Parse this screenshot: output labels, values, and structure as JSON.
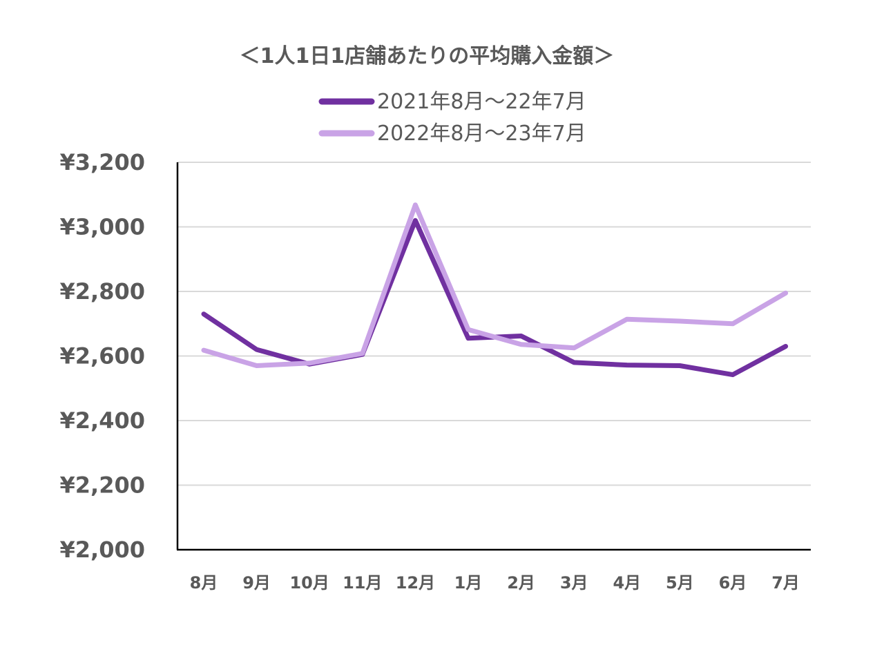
{
  "chart_data": {
    "type": "line",
    "title": "＜1人1日1店舗あたりの平均購入金額＞",
    "categories": [
      "8月",
      "9月",
      "10月",
      "11月",
      "12月",
      "1月",
      "2月",
      "3月",
      "4月",
      "5月",
      "6月",
      "7月"
    ],
    "series": [
      {
        "name": "2021年8月〜22年7月",
        "color": "#7030a0",
        "values": [
          2730,
          2620,
          2575,
          2605,
          3020,
          2655,
          2662,
          2580,
          2572,
          2570,
          2542,
          2630
        ]
      },
      {
        "name": "2022年8月〜23年7月",
        "color": "#c9a3e6",
        "values": [
          2618,
          2570,
          2578,
          2608,
          3068,
          2682,
          2636,
          2625,
          2714,
          2708,
          2700,
          2795
        ]
      }
    ],
    "ylim": [
      2000,
      3200
    ],
    "yticks": [
      2000,
      2200,
      2400,
      2600,
      2800,
      3000,
      3200
    ],
    "ytick_labels": [
      "¥2,000",
      "¥2,200",
      "¥2,400",
      "¥2,600",
      "¥2,800",
      "¥3,000",
      "¥3,200"
    ],
    "grid": true,
    "legend_position": "top-center"
  }
}
